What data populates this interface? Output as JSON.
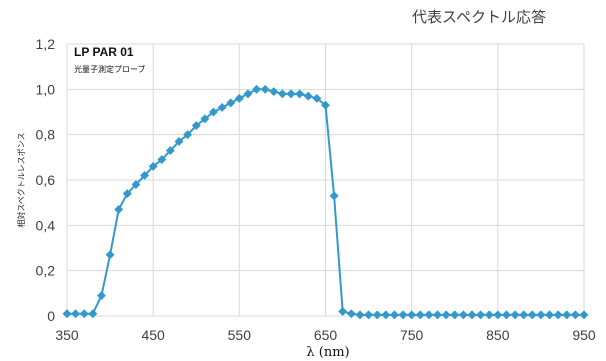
{
  "chart_data": {
    "type": "line",
    "title": "代表スペクトル応答",
    "xlabel": "λ (nm)",
    "ylabel": "相対スペクトルレスポンス",
    "annotation": {
      "title": "LP PAR 01",
      "subtitle": "光量子測定プローブ"
    },
    "xlim": [
      350,
      950
    ],
    "ylim": [
      0,
      1.2
    ],
    "x_ticks": [
      350,
      450,
      550,
      650,
      750,
      850,
      950
    ],
    "y_ticks": [
      "0",
      "0,2",
      "0,4",
      "0,6",
      "0,8",
      "1,0",
      "1,2"
    ],
    "y_tick_values": [
      0,
      0.2,
      0.4,
      0.6,
      0.8,
      1.0,
      1.2
    ],
    "grid": true,
    "legend": "none",
    "color": "#3399CC",
    "series": [
      {
        "x": [
          350,
          360,
          370,
          380,
          390,
          400,
          410,
          420,
          430,
          440,
          450,
          460,
          470,
          480,
          490,
          500,
          510,
          520,
          530,
          540,
          550,
          560,
          570,
          580,
          590,
          600,
          610,
          620,
          630,
          640,
          650,
          660,
          670,
          680,
          690,
          700,
          710,
          720,
          730,
          740,
          750,
          760,
          770,
          780,
          790,
          800,
          810,
          820,
          830,
          840,
          850,
          860,
          870,
          880,
          890,
          900,
          910,
          920,
          930,
          940,
          950
        ],
        "y": [
          0.01,
          0.01,
          0.01,
          0.01,
          0.09,
          0.27,
          0.47,
          0.54,
          0.58,
          0.62,
          0.66,
          0.69,
          0.73,
          0.77,
          0.8,
          0.84,
          0.87,
          0.9,
          0.92,
          0.94,
          0.96,
          0.98,
          1.0,
          1.0,
          0.99,
          0.98,
          0.98,
          0.98,
          0.97,
          0.96,
          0.93,
          0.53,
          0.02,
          0.01,
          0.005,
          0.005,
          0.005,
          0.005,
          0.005,
          0.005,
          0.005,
          0.005,
          0.005,
          0.005,
          0.005,
          0.005,
          0.005,
          0.005,
          0.005,
          0.005,
          0.005,
          0.005,
          0.005,
          0.005,
          0.005,
          0.005,
          0.005,
          0.005,
          0.005,
          0.005,
          0.005
        ]
      }
    ]
  }
}
